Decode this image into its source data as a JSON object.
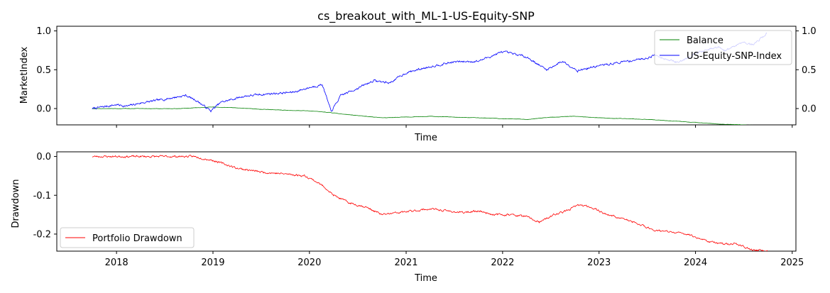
{
  "colors": {
    "balance": "#008000",
    "index": "#0000ff",
    "drawdown": "#ff0000",
    "ylabel_top": "#0000ff"
  },
  "chart_data": [
    {
      "type": "line",
      "title": "cs_breakout_with_ML-1-US-Equity-SNP",
      "xlabel": "Time",
      "ylabel": "MarketIndex",
      "ylabel_right": "",
      "x_ticks": [
        "2018",
        "2019",
        "2020",
        "2021",
        "2022",
        "2023",
        "2024",
        "2025"
      ],
      "y_ticks": [
        "0.0",
        "0.5",
        "1.0"
      ],
      "y_ticks_right": [
        "0.0",
        "0.5",
        "1.0"
      ],
      "xlim": [
        "2017-05-20",
        "2025-01-15"
      ],
      "ylim": [
        -0.21,
        1.06
      ],
      "legend_position": "top-right",
      "grid": false,
      "series": [
        {
          "name": "Balance",
          "axis": "right",
          "x": [
            "2017-10-01",
            "2018-04-01",
            "2018-09-01",
            "2018-11-01",
            "2019-01-01",
            "2019-04-01",
            "2019-07-01",
            "2019-10-01",
            "2020-01-01",
            "2020-03-15",
            "2020-05-01",
            "2020-07-01",
            "2020-10-01",
            "2021-01-01",
            "2021-04-01",
            "2021-07-01",
            "2021-10-01",
            "2022-01-01",
            "2022-04-01",
            "2022-07-01",
            "2022-10-01",
            "2023-01-01",
            "2023-04-01",
            "2023-07-01",
            "2023-10-01",
            "2024-01-01",
            "2024-04-01",
            "2024-07-01",
            "2024-10-01"
          ],
          "values": [
            0.0,
            0.0,
            0.0,
            0.01,
            0.02,
            0.01,
            -0.01,
            -0.02,
            -0.03,
            -0.05,
            -0.07,
            -0.09,
            -0.12,
            -0.11,
            -0.1,
            -0.11,
            -0.12,
            -0.13,
            -0.14,
            -0.11,
            -0.1,
            -0.12,
            -0.13,
            -0.14,
            -0.16,
            -0.18,
            -0.2,
            -0.21,
            -0.22
          ]
        },
        {
          "name": "US-Equity-SNP-Index",
          "axis": "left",
          "x": [
            "2017-10-01",
            "2018-01-01",
            "2018-02-09",
            "2018-04-01",
            "2018-07-01",
            "2018-09-20",
            "2018-11-01",
            "2018-12-24",
            "2019-01-31",
            "2019-04-30",
            "2019-07-31",
            "2019-10-31",
            "2019-12-31",
            "2020-02-19",
            "2020-03-23",
            "2020-04-30",
            "2020-06-30",
            "2020-08-31",
            "2020-10-30",
            "2020-12-31",
            "2021-03-31",
            "2021-06-30",
            "2021-09-30",
            "2021-12-31",
            "2022-03-31",
            "2022-06-16",
            "2022-08-16",
            "2022-10-12",
            "2022-12-30",
            "2023-03-31",
            "2023-06-30",
            "2023-07-31",
            "2023-10-27",
            "2023-12-29",
            "2024-03-28",
            "2024-04-19",
            "2024-06-28",
            "2024-08-05",
            "2024-09-27"
          ],
          "values": [
            0.0,
            0.05,
            0.03,
            0.07,
            0.12,
            0.17,
            0.1,
            -0.03,
            0.08,
            0.16,
            0.19,
            0.21,
            0.27,
            0.31,
            -0.04,
            0.17,
            0.26,
            0.36,
            0.33,
            0.46,
            0.54,
            0.6,
            0.61,
            0.73,
            0.67,
            0.5,
            0.61,
            0.49,
            0.55,
            0.6,
            0.65,
            0.69,
            0.59,
            0.71,
            0.79,
            0.74,
            0.86,
            0.82,
            0.97
          ]
        }
      ]
    },
    {
      "type": "line",
      "title": "",
      "xlabel": "Time",
      "ylabel": "Drawdown",
      "x_ticks": [
        "2018",
        "2019",
        "2020",
        "2021",
        "2022",
        "2023",
        "2024",
        "2025"
      ],
      "y_ticks": [
        "0.0",
        "-0.1",
        "-0.2"
      ],
      "xlim": [
        "2017-05-20",
        "2025-01-15"
      ],
      "ylim": [
        -0.244,
        0.012
      ],
      "legend_position": "lower-left",
      "grid": false,
      "series": [
        {
          "name": "Portfolio Drawdown",
          "x": [
            "2017-10-01",
            "2018-10-01",
            "2018-10-20",
            "2019-01-01",
            "2019-04-01",
            "2019-07-01",
            "2019-10-01",
            "2019-12-15",
            "2020-01-15",
            "2020-03-01",
            "2020-04-01",
            "2020-06-01",
            "2020-08-01",
            "2020-10-01",
            "2020-12-01",
            "2021-02-01",
            "2021-04-01",
            "2021-06-01",
            "2021-08-01",
            "2021-10-01",
            "2021-12-01",
            "2022-02-01",
            "2022-04-01",
            "2022-05-20",
            "2022-07-15",
            "2022-09-01",
            "2022-10-15",
            "2022-12-01",
            "2023-02-01",
            "2023-04-01",
            "2023-06-01",
            "2023-08-01",
            "2023-10-01",
            "2023-12-01",
            "2024-02-01",
            "2024-04-01",
            "2024-06-01",
            "2024-08-01",
            "2024-09-30"
          ],
          "values": [
            0.0,
            0.0,
            0.0,
            -0.01,
            -0.03,
            -0.04,
            -0.045,
            -0.05,
            -0.06,
            -0.08,
            -0.1,
            -0.12,
            -0.13,
            -0.15,
            -0.145,
            -0.14,
            -0.135,
            -0.14,
            -0.145,
            -0.14,
            -0.15,
            -0.15,
            -0.155,
            -0.17,
            -0.15,
            -0.14,
            -0.125,
            -0.13,
            -0.15,
            -0.16,
            -0.175,
            -0.19,
            -0.195,
            -0.2,
            -0.215,
            -0.225,
            -0.225,
            -0.24,
            -0.245
          ]
        }
      ]
    }
  ]
}
